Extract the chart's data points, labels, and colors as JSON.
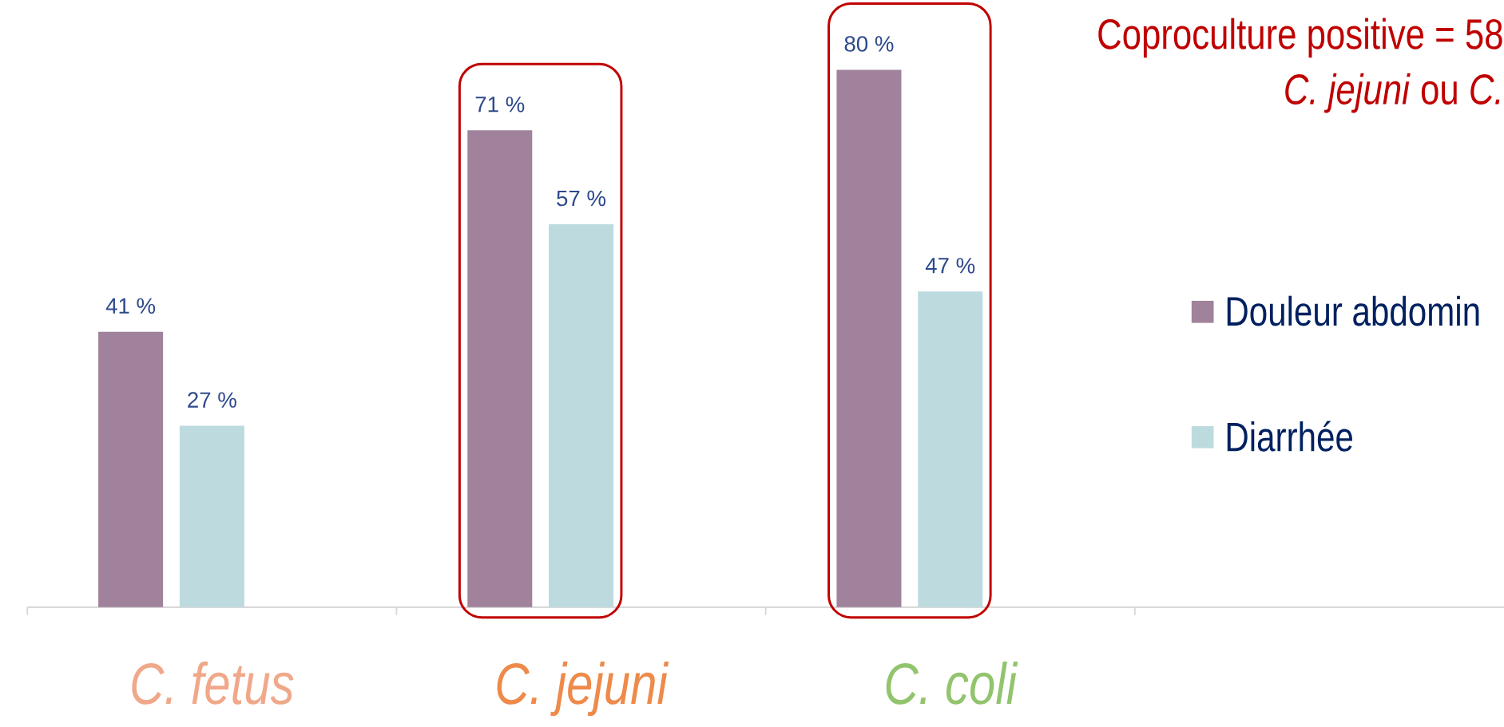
{
  "chart_data": {
    "type": "bar",
    "title": "Coproculture positive = 58",
    "subtitle": "*C. jejuni* ou *C.*",
    "categories": [
      "C. fetus",
      "C. jejuni",
      "C. coli",
      null
    ],
    "series": [
      {
        "name": "Douleur abdomin",
        "color": "#a0829c",
        "values": [
          41,
          71,
          80,
          null
        ],
        "value_labels": [
          "41 %",
          "71 %",
          "80 %",
          null
        ]
      },
      {
        "name": "Diarrhée",
        "color": "#bddbdf",
        "values": [
          27,
          57,
          47,
          null
        ],
        "value_labels": [
          "27 %",
          "57 %",
          "47 %",
          null
        ]
      }
    ],
    "tick_labels": "x",
    "legend": "right"
  }
}
